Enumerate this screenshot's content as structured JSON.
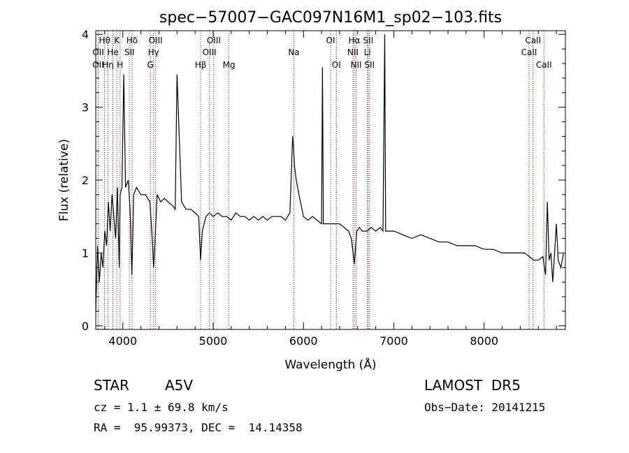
{
  "chart_data": {
    "type": "line",
    "title": "spec−57007−GAC097N16M1_sp02−103.fits",
    "xlabel": "Wavelength (Å)",
    "ylabel": "Flux (relative)",
    "xlim": [
      3700,
      8900
    ],
    "ylim": [
      -0.05,
      4.05
    ],
    "xticks": [
      4000,
      5000,
      6000,
      7000,
      8000
    ],
    "yticks": [
      0,
      1,
      2,
      3,
      4
    ],
    "grid": false,
    "line_color": "#000000",
    "marker_color": "#8b1a1a",
    "series": [
      {
        "x": [
          3700,
          3720,
          3740,
          3760,
          3780,
          3800,
          3820,
          3840,
          3860,
          3880,
          3900,
          3920,
          3940,
          3960,
          3970,
          3990,
          4010,
          4030,
          4060,
          4080,
          4100,
          4120,
          4150,
          4200,
          4250,
          4300,
          4330,
          4340,
          4350,
          4380,
          4420,
          4460,
          4500,
          4550,
          4580,
          4600,
          4650,
          4700,
          4750,
          4800,
          4840,
          4861,
          4880,
          4920,
          4960,
          5000,
          5050,
          5100,
          5150,
          5200,
          5250,
          5300,
          5350,
          5400,
          5450,
          5500,
          5550,
          5600,
          5650,
          5700,
          5750,
          5800,
          5850,
          5880,
          5890,
          5900,
          5920,
          5950,
          6000,
          6050,
          6100,
          6150,
          6200,
          6210,
          6220,
          6250,
          6300,
          6350,
          6400,
          6450,
          6500,
          6530,
          6563,
          6590,
          6620,
          6650,
          6700,
          6750,
          6800,
          6850,
          6880,
          6900,
          6910,
          6950,
          7000,
          7100,
          7200,
          7300,
          7400,
          7500,
          7600,
          7700,
          7800,
          7900,
          8000,
          8100,
          8200,
          8300,
          8400,
          8450,
          8500,
          8550,
          8600,
          8650,
          8680,
          8700,
          8720,
          8740,
          8760,
          8780,
          8800,
          8820,
          8850,
          8880
        ],
        "y": [
          0.2,
          1.1,
          0.6,
          1.0,
          0.8,
          1.3,
          1.1,
          1.7,
          1.3,
          1.8,
          1.5,
          1.2,
          1.9,
          0.8,
          1.8,
          1.9,
          3.45,
          1.9,
          2.0,
          1.6,
          0.7,
          1.8,
          1.9,
          1.8,
          1.8,
          1.7,
          1.1,
          0.8,
          1.0,
          1.8,
          1.7,
          1.75,
          1.7,
          1.65,
          1.6,
          3.45,
          1.7,
          1.6,
          1.6,
          1.55,
          1.5,
          0.9,
          1.3,
          1.5,
          1.55,
          1.5,
          1.55,
          1.5,
          1.5,
          1.45,
          1.55,
          1.5,
          1.5,
          1.45,
          1.5,
          1.45,
          1.5,
          1.45,
          1.5,
          1.5,
          1.5,
          1.45,
          1.55,
          2.6,
          2.45,
          2.2,
          2.0,
          1.8,
          1.5,
          1.45,
          1.5,
          1.45,
          1.4,
          3.55,
          1.4,
          1.4,
          1.4,
          1.4,
          1.4,
          1.35,
          1.3,
          1.2,
          0.85,
          1.3,
          1.35,
          1.3,
          1.3,
          1.35,
          1.3,
          1.35,
          1.3,
          4.0,
          1.3,
          1.3,
          1.3,
          1.25,
          1.2,
          1.25,
          1.2,
          1.15,
          1.15,
          1.1,
          1.1,
          1.1,
          1.05,
          1.05,
          1.0,
          1.0,
          1.0,
          1.0,
          0.95,
          0.9,
          0.9,
          0.95,
          0.7,
          1.7,
          0.9,
          1.0,
          0.6,
          1.0,
          1.4,
          0.9,
          0.8,
          1.0
        ]
      }
    ],
    "spectral_lines": [
      {
        "name": "Hθ",
        "wl": 3798,
        "row": 0
      },
      {
        "name": "OII",
        "wl": 3727,
        "row": 1
      },
      {
        "name": "OII",
        "wl": 3727,
        "row": 2
      },
      {
        "name": "He",
        "wl": 3889,
        "row": 1
      },
      {
        "name": "Hη",
        "wl": 3835,
        "row": 2
      },
      {
        "name": "K",
        "wl": 3934,
        "row": 0
      },
      {
        "name": "H",
        "wl": 3969,
        "row": 2
      },
      {
        "name": "Hδ",
        "wl": 4102,
        "row": 0
      },
      {
        "name": "SII",
        "wl": 4072,
        "row": 1
      },
      {
        "name": "OIII",
        "wl": 4363,
        "row": 0
      },
      {
        "name": "Hγ",
        "wl": 4340,
        "row": 1
      },
      {
        "name": "G",
        "wl": 4305,
        "row": 2
      },
      {
        "name": "Hβ",
        "wl": 4861,
        "row": 2
      },
      {
        "name": "OIII",
        "wl": 4959,
        "row": 1
      },
      {
        "name": "OIII",
        "wl": 5007,
        "row": 0
      },
      {
        "name": "Mg",
        "wl": 5175,
        "row": 2
      },
      {
        "name": "Na",
        "wl": 5893,
        "row": 1
      },
      {
        "name": "OI",
        "wl": 6300,
        "row": 0
      },
      {
        "name": "OI",
        "wl": 6364,
        "row": 2
      },
      {
        "name": "NII",
        "wl": 6548,
        "row": 1
      },
      {
        "name": "Hα",
        "wl": 6563,
        "row": 0
      },
      {
        "name": "NII",
        "wl": 6583,
        "row": 2
      },
      {
        "name": "SII",
        "wl": 6717,
        "row": 0
      },
      {
        "name": "Li",
        "wl": 6708,
        "row": 1
      },
      {
        "name": "SII",
        "wl": 6731,
        "row": 2
      },
      {
        "name": "CaII",
        "wl": 8498,
        "row": 1
      },
      {
        "name": "CaII",
        "wl": 8542,
        "row": 0
      },
      {
        "name": "CaII",
        "wl": 8662,
        "row": 2
      }
    ]
  },
  "info": {
    "object_class": "STAR",
    "subclass": "A5V",
    "survey": "LAMOST  DR5",
    "redshift": "cz = 1.1 ± 69.8 km/s",
    "obs_date": "Obs−Date: 20141215",
    "coords": "RA =  95.99373, DEC =  14.14358"
  }
}
